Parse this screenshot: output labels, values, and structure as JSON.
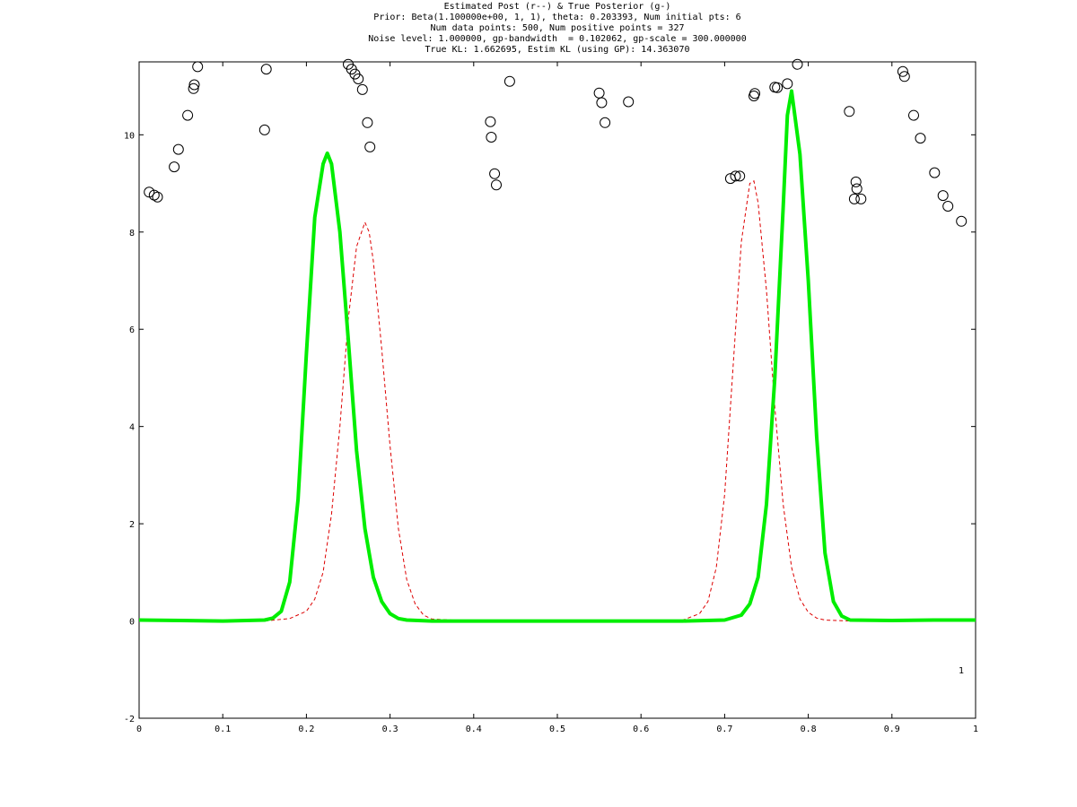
{
  "chart_data": {
    "type": "line",
    "title_lines": [
      "Estimated Post (r--) & True Posterior (g-)",
      "Prior: Beta(1.100000e+00, 1, 1), theta: 0.203393, Num initial pts: 6",
      "Num data points: 500, Num positive points = 327",
      "Noise level: 1.000000, gp-bandwidth  = 0.102062, gp-scale = 300.000000",
      "True KL: 1.662695, Estim KL (using GP): 14.363070"
    ],
    "xlabel": "",
    "ylabel": "",
    "xlim": [
      0,
      1
    ],
    "ylim": [
      -2,
      11.5
    ],
    "x_ticks": [
      0,
      0.1,
      0.2,
      0.3,
      0.4,
      0.5,
      0.6,
      0.7,
      0.8,
      0.9,
      1
    ],
    "x_tick_labels": [
      "0",
      "0.1",
      "0.2",
      "0.3",
      "0.4",
      "0.5",
      "0.6",
      "0.7",
      "0.8",
      "0.9",
      "1"
    ],
    "y_ticks": [
      -2,
      0,
      2,
      4,
      6,
      8,
      10
    ],
    "y_tick_labels": [
      "-2",
      "0",
      "2",
      "4",
      "6",
      "8",
      "10"
    ],
    "grid": false,
    "annotation": "1",
    "colors": {
      "true_posterior": "#00ee00",
      "estimated_posterior": "#dd0000",
      "markers": "#000000"
    },
    "series": [
      {
        "style": "green-solid-thick",
        "x": [
          0,
          0.05,
          0.1,
          0.15,
          0.16,
          0.17,
          0.18,
          0.19,
          0.2,
          0.21,
          0.22,
          0.225,
          0.23,
          0.24,
          0.25,
          0.26,
          0.27,
          0.28,
          0.29,
          0.3,
          0.31,
          0.32,
          0.35,
          0.4,
          0.5,
          0.6,
          0.65,
          0.7,
          0.72,
          0.73,
          0.74,
          0.75,
          0.76,
          0.77,
          0.775,
          0.78,
          0.79,
          0.8,
          0.81,
          0.82,
          0.83,
          0.84,
          0.85,
          0.9,
          0.95,
          1
        ],
        "y": [
          0.02,
          0.01,
          0.0,
          0.02,
          0.06,
          0.2,
          0.8,
          2.5,
          5.5,
          8.3,
          9.4,
          9.62,
          9.4,
          8.0,
          5.8,
          3.5,
          1.9,
          0.9,
          0.4,
          0.15,
          0.05,
          0.02,
          0.0,
          0.0,
          0.0,
          0.0,
          0.0,
          0.02,
          0.12,
          0.35,
          0.9,
          2.4,
          5.0,
          8.5,
          10.4,
          10.9,
          9.6,
          7.0,
          3.8,
          1.4,
          0.4,
          0.1,
          0.02,
          0.01,
          0.02,
          0.02
        ]
      },
      {
        "style": "red-dashed",
        "x": [
          0,
          0.1,
          0.15,
          0.18,
          0.2,
          0.21,
          0.22,
          0.23,
          0.24,
          0.25,
          0.26,
          0.27,
          0.275,
          0.28,
          0.29,
          0.3,
          0.31,
          0.32,
          0.33,
          0.34,
          0.35,
          0.4,
          0.5,
          0.6,
          0.65,
          0.67,
          0.68,
          0.69,
          0.7,
          0.71,
          0.72,
          0.73,
          0.735,
          0.74,
          0.75,
          0.76,
          0.77,
          0.78,
          0.79,
          0.8,
          0.81,
          0.82,
          0.85,
          0.9,
          1
        ],
        "y": [
          0.0,
          0.0,
          0.0,
          0.05,
          0.2,
          0.45,
          1.0,
          2.2,
          4.0,
          6.2,
          7.7,
          8.2,
          8.0,
          7.4,
          5.6,
          3.6,
          1.9,
          0.85,
          0.35,
          0.12,
          0.04,
          0.0,
          0.0,
          0.0,
          0.02,
          0.15,
          0.4,
          1.1,
          2.6,
          5.2,
          7.8,
          9.0,
          9.05,
          8.6,
          6.8,
          4.4,
          2.4,
          1.1,
          0.45,
          0.18,
          0.06,
          0.02,
          0.0,
          0.0,
          0.0
        ]
      }
    ],
    "markers": {
      "shape": "open-circle",
      "x": [
        0.012,
        0.018,
        0.022,
        0.042,
        0.047,
        0.058,
        0.065,
        0.066,
        0.07,
        0.15,
        0.152,
        0.25,
        0.254,
        0.258,
        0.262,
        0.267,
        0.273,
        0.276,
        0.42,
        0.421,
        0.425,
        0.427,
        0.443,
        0.55,
        0.553,
        0.557,
        0.585,
        0.707,
        0.713,
        0.718,
        0.735,
        0.736,
        0.76,
        0.763,
        0.775,
        0.787,
        0.849,
        0.855,
        0.857,
        0.858,
        0.863,
        0.913,
        0.915,
        0.926,
        0.934,
        0.951,
        0.961,
        0.967,
        0.983
      ],
      "y": [
        8.82,
        8.76,
        8.72,
        9.34,
        9.7,
        10.4,
        10.95,
        11.03,
        11.4,
        10.1,
        11.35,
        11.45,
        11.35,
        11.25,
        11.15,
        10.93,
        10.25,
        9.75,
        10.27,
        9.95,
        9.2,
        8.97,
        11.1,
        10.86,
        10.66,
        10.25,
        10.68,
        9.1,
        9.15,
        9.15,
        10.8,
        10.85,
        10.98,
        10.97,
        11.05,
        11.45,
        10.48,
        8.68,
        9.03,
        8.89,
        8.68,
        11.3,
        11.2,
        10.4,
        9.93,
        9.22,
        8.75,
        8.53,
        8.22
      ]
    }
  }
}
